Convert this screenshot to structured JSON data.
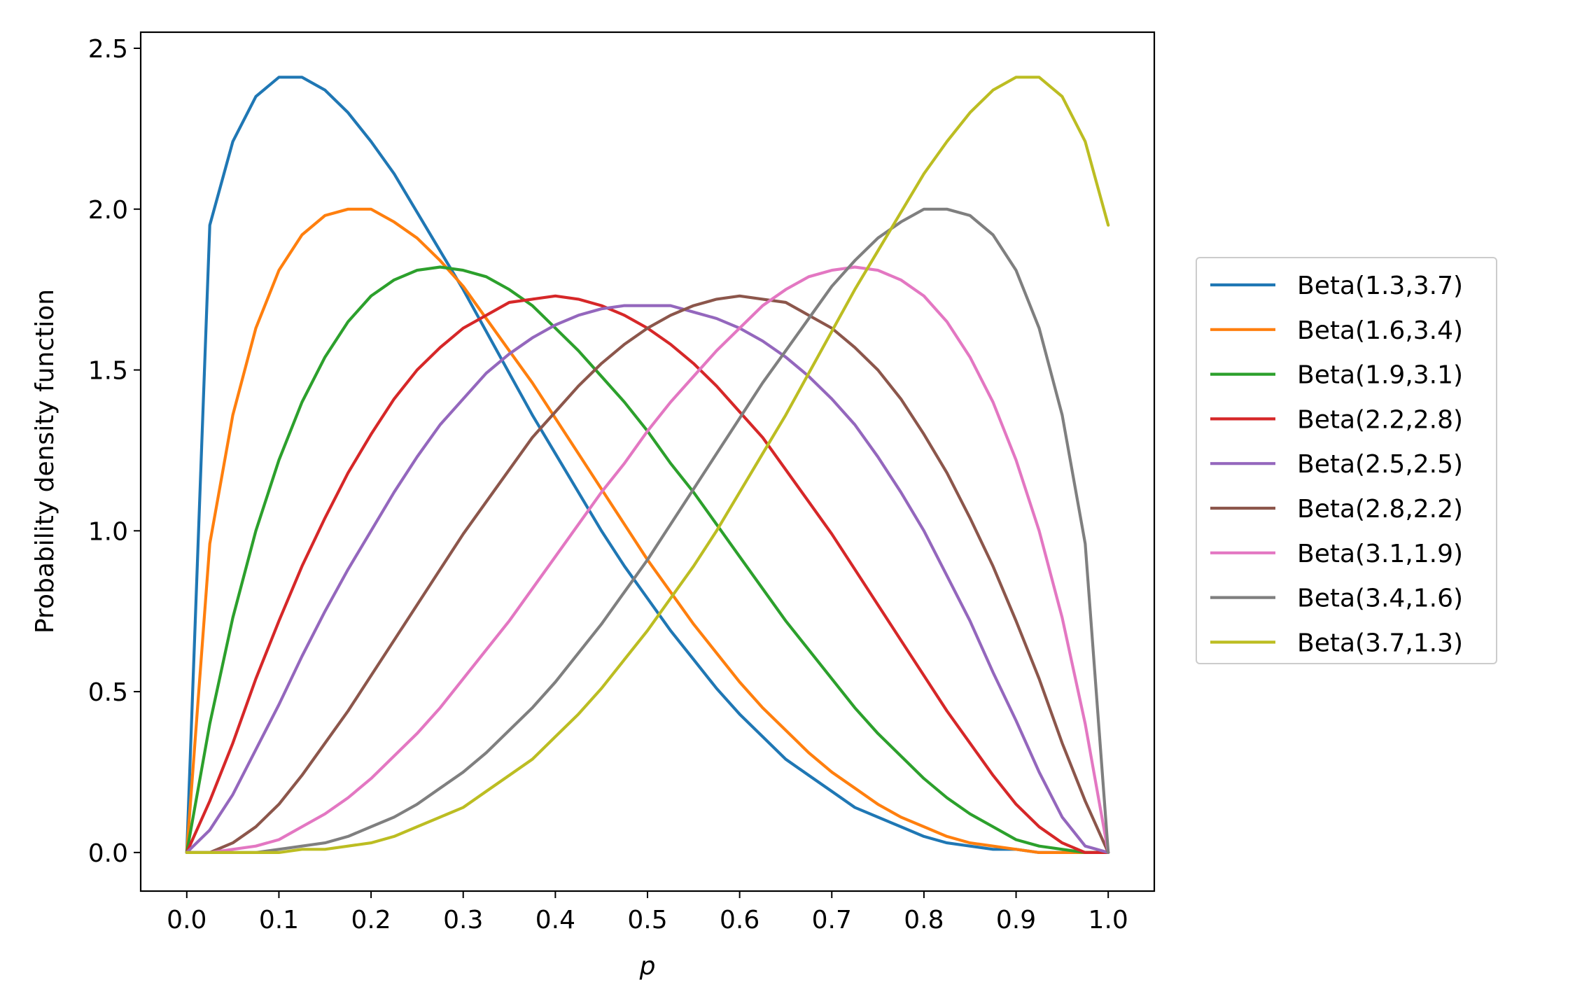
{
  "chart_data": {
    "type": "line",
    "title": "",
    "xlabel": "p",
    "ylabel": "Probability density function",
    "xlim": [
      -0.05,
      1.05
    ],
    "ylim": [
      -0.12,
      2.55
    ],
    "x_ticks": [
      "0.0",
      "0.1",
      "0.2",
      "0.3",
      "0.4",
      "0.5",
      "0.6",
      "0.7",
      "0.8",
      "0.9",
      "1.0"
    ],
    "y_ticks": [
      "0.0",
      "0.5",
      "1.0",
      "1.5",
      "2.0",
      "2.5"
    ],
    "grid": false,
    "legend_position": "outside-right",
    "x": [
      0.0,
      0.025,
      0.05,
      0.075,
      0.1,
      0.125,
      0.15,
      0.175,
      0.2,
      0.225,
      0.25,
      0.275,
      0.3,
      0.325,
      0.35,
      0.375,
      0.4,
      0.425,
      0.45,
      0.475,
      0.5,
      0.525,
      0.55,
      0.575,
      0.6,
      0.625,
      0.65,
      0.675,
      0.7,
      0.725,
      0.75,
      0.775,
      0.8,
      0.825,
      0.85,
      0.875,
      0.9,
      0.925,
      0.95,
      0.975,
      1.0
    ],
    "series": [
      {
        "name": "Beta(1.3,3.7)",
        "color": "#1f77b4",
        "values": [
          0.0,
          1.95,
          2.21,
          2.35,
          2.41,
          2.41,
          2.37,
          2.3,
          2.21,
          2.11,
          1.99,
          1.87,
          1.75,
          1.62,
          1.49,
          1.36,
          1.24,
          1.12,
          1.0,
          0.89,
          0.79,
          0.69,
          0.6,
          0.51,
          0.43,
          0.36,
          0.29,
          0.24,
          0.19,
          0.14,
          0.11,
          0.08,
          0.05,
          0.03,
          0.02,
          0.01,
          0.01,
          0.0,
          0.0,
          0.0,
          0.0
        ]
      },
      {
        "name": "Beta(1.6,3.4)",
        "color": "#ff7f0e",
        "values": [
          0.0,
          0.96,
          1.36,
          1.63,
          1.81,
          1.92,
          1.98,
          2.0,
          2.0,
          1.96,
          1.91,
          1.84,
          1.76,
          1.66,
          1.56,
          1.46,
          1.35,
          1.24,
          1.13,
          1.02,
          0.91,
          0.81,
          0.71,
          0.62,
          0.53,
          0.45,
          0.38,
          0.31,
          0.25,
          0.2,
          0.15,
          0.11,
          0.08,
          0.05,
          0.03,
          0.02,
          0.01,
          0.0,
          0.0,
          0.0,
          0.0
        ]
      },
      {
        "name": "Beta(1.9,3.1)",
        "color": "#2ca02c",
        "values": [
          0.0,
          0.4,
          0.73,
          1.0,
          1.22,
          1.4,
          1.54,
          1.65,
          1.73,
          1.78,
          1.81,
          1.82,
          1.81,
          1.79,
          1.75,
          1.7,
          1.63,
          1.56,
          1.48,
          1.4,
          1.31,
          1.21,
          1.12,
          1.02,
          0.92,
          0.82,
          0.72,
          0.63,
          0.54,
          0.45,
          0.37,
          0.3,
          0.23,
          0.17,
          0.12,
          0.08,
          0.04,
          0.02,
          0.01,
          0.0,
          0.0
        ]
      },
      {
        "name": "Beta(2.2,2.8)",
        "color": "#d62728",
        "values": [
          0.0,
          0.16,
          0.34,
          0.54,
          0.72,
          0.89,
          1.04,
          1.18,
          1.3,
          1.41,
          1.5,
          1.57,
          1.63,
          1.67,
          1.71,
          1.72,
          1.73,
          1.72,
          1.7,
          1.67,
          1.63,
          1.58,
          1.52,
          1.45,
          1.37,
          1.29,
          1.19,
          1.09,
          0.99,
          0.88,
          0.77,
          0.66,
          0.55,
          0.44,
          0.34,
          0.24,
          0.15,
          0.08,
          0.03,
          0.0,
          0.0
        ]
      },
      {
        "name": "Beta(2.5,2.5)",
        "color": "#9467bd",
        "values": [
          0.0,
          0.07,
          0.18,
          0.32,
          0.46,
          0.61,
          0.75,
          0.88,
          1.0,
          1.12,
          1.23,
          1.33,
          1.41,
          1.49,
          1.55,
          1.6,
          1.64,
          1.67,
          1.69,
          1.7,
          1.7,
          1.7,
          1.68,
          1.66,
          1.63,
          1.59,
          1.54,
          1.48,
          1.41,
          1.33,
          1.23,
          1.12,
          1.0,
          0.86,
          0.72,
          0.56,
          0.41,
          0.25,
          0.11,
          0.02,
          0.0
        ]
      },
      {
        "name": "Beta(2.8,2.2)",
        "color": "#8c564b",
        "values": [
          0.0,
          0.0,
          0.03,
          0.08,
          0.15,
          0.24,
          0.34,
          0.44,
          0.55,
          0.66,
          0.77,
          0.88,
          0.99,
          1.09,
          1.19,
          1.29,
          1.37,
          1.45,
          1.52,
          1.58,
          1.63,
          1.67,
          1.7,
          1.72,
          1.73,
          1.72,
          1.71,
          1.67,
          1.63,
          1.57,
          1.5,
          1.41,
          1.3,
          1.18,
          1.04,
          0.89,
          0.72,
          0.54,
          0.34,
          0.16,
          0.0
        ]
      },
      {
        "name": "Beta(3.1,1.9)",
        "color": "#e377c2",
        "values": [
          0.0,
          0.0,
          0.01,
          0.02,
          0.04,
          0.08,
          0.12,
          0.17,
          0.23,
          0.3,
          0.37,
          0.45,
          0.54,
          0.63,
          0.72,
          0.82,
          0.92,
          1.02,
          1.12,
          1.21,
          1.31,
          1.4,
          1.48,
          1.56,
          1.63,
          1.7,
          1.75,
          1.79,
          1.81,
          1.82,
          1.81,
          1.78,
          1.73,
          1.65,
          1.54,
          1.4,
          1.22,
          1.0,
          0.73,
          0.4,
          0.0
        ]
      },
      {
        "name": "Beta(3.4,1.6)",
        "color": "#7f7f7f",
        "values": [
          0.0,
          0.0,
          0.0,
          0.0,
          0.01,
          0.02,
          0.03,
          0.05,
          0.08,
          0.11,
          0.15,
          0.2,
          0.25,
          0.31,
          0.38,
          0.45,
          0.53,
          0.62,
          0.71,
          0.81,
          0.91,
          1.02,
          1.13,
          1.24,
          1.35,
          1.46,
          1.56,
          1.66,
          1.76,
          1.84,
          1.91,
          1.96,
          2.0,
          2.0,
          1.98,
          1.92,
          1.81,
          1.63,
          1.36,
          0.96,
          0.0
        ]
      },
      {
        "name": "Beta(3.7,1.3)",
        "color": "#bcbd22",
        "values": [
          0.0,
          0.0,
          0.0,
          0.0,
          0.0,
          0.01,
          0.01,
          0.02,
          0.03,
          0.05,
          0.08,
          0.11,
          0.14,
          0.19,
          0.24,
          0.29,
          0.36,
          0.43,
          0.51,
          0.6,
          0.69,
          0.79,
          0.89,
          1.0,
          1.12,
          1.24,
          1.36,
          1.49,
          1.62,
          1.75,
          1.87,
          1.99,
          2.11,
          2.21,
          2.3,
          2.37,
          2.41,
          2.41,
          2.35,
          2.21,
          1.95
        ]
      }
    ]
  }
}
